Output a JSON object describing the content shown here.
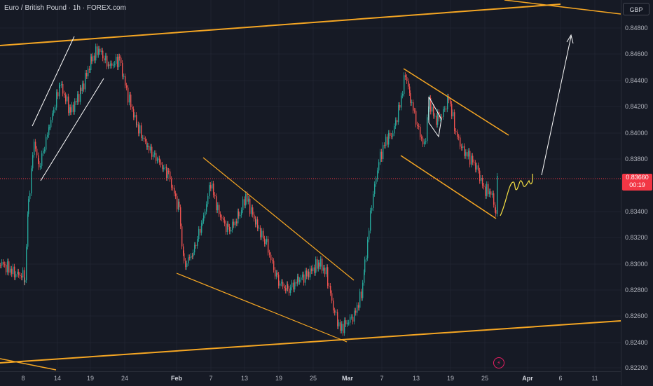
{
  "header": {
    "symbol_title": "Euro / British Pound · 1h · FOREX.com"
  },
  "price_axis": {
    "currency": "GBP",
    "labels": [
      "0.84800",
      "0.84600",
      "0.84400",
      "0.84200",
      "0.84000",
      "0.83800",
      "0.83400",
      "0.83200",
      "0.83000",
      "0.82800",
      "0.82600",
      "0.82400",
      "0.82200"
    ],
    "current_price": "0.83660",
    "countdown": "00:19"
  },
  "time_axis": {
    "labels": [
      "8",
      "14",
      "19",
      "24",
      "Feb",
      "7",
      "13",
      "19",
      "25",
      "Mar",
      "7",
      "13",
      "19",
      "25",
      "Apr",
      "6",
      "11"
    ]
  },
  "colors": {
    "background": "#161a25",
    "up_candle": "#26a69a",
    "down_candle": "#ef5350",
    "trendline_orange": "#f5a623",
    "annotation_white": "#ffffff",
    "current_price_red": "#f23645",
    "sketch_yellow": "#f7e244"
  },
  "icons": {
    "flash": "lightning-bolt-icon"
  }
}
